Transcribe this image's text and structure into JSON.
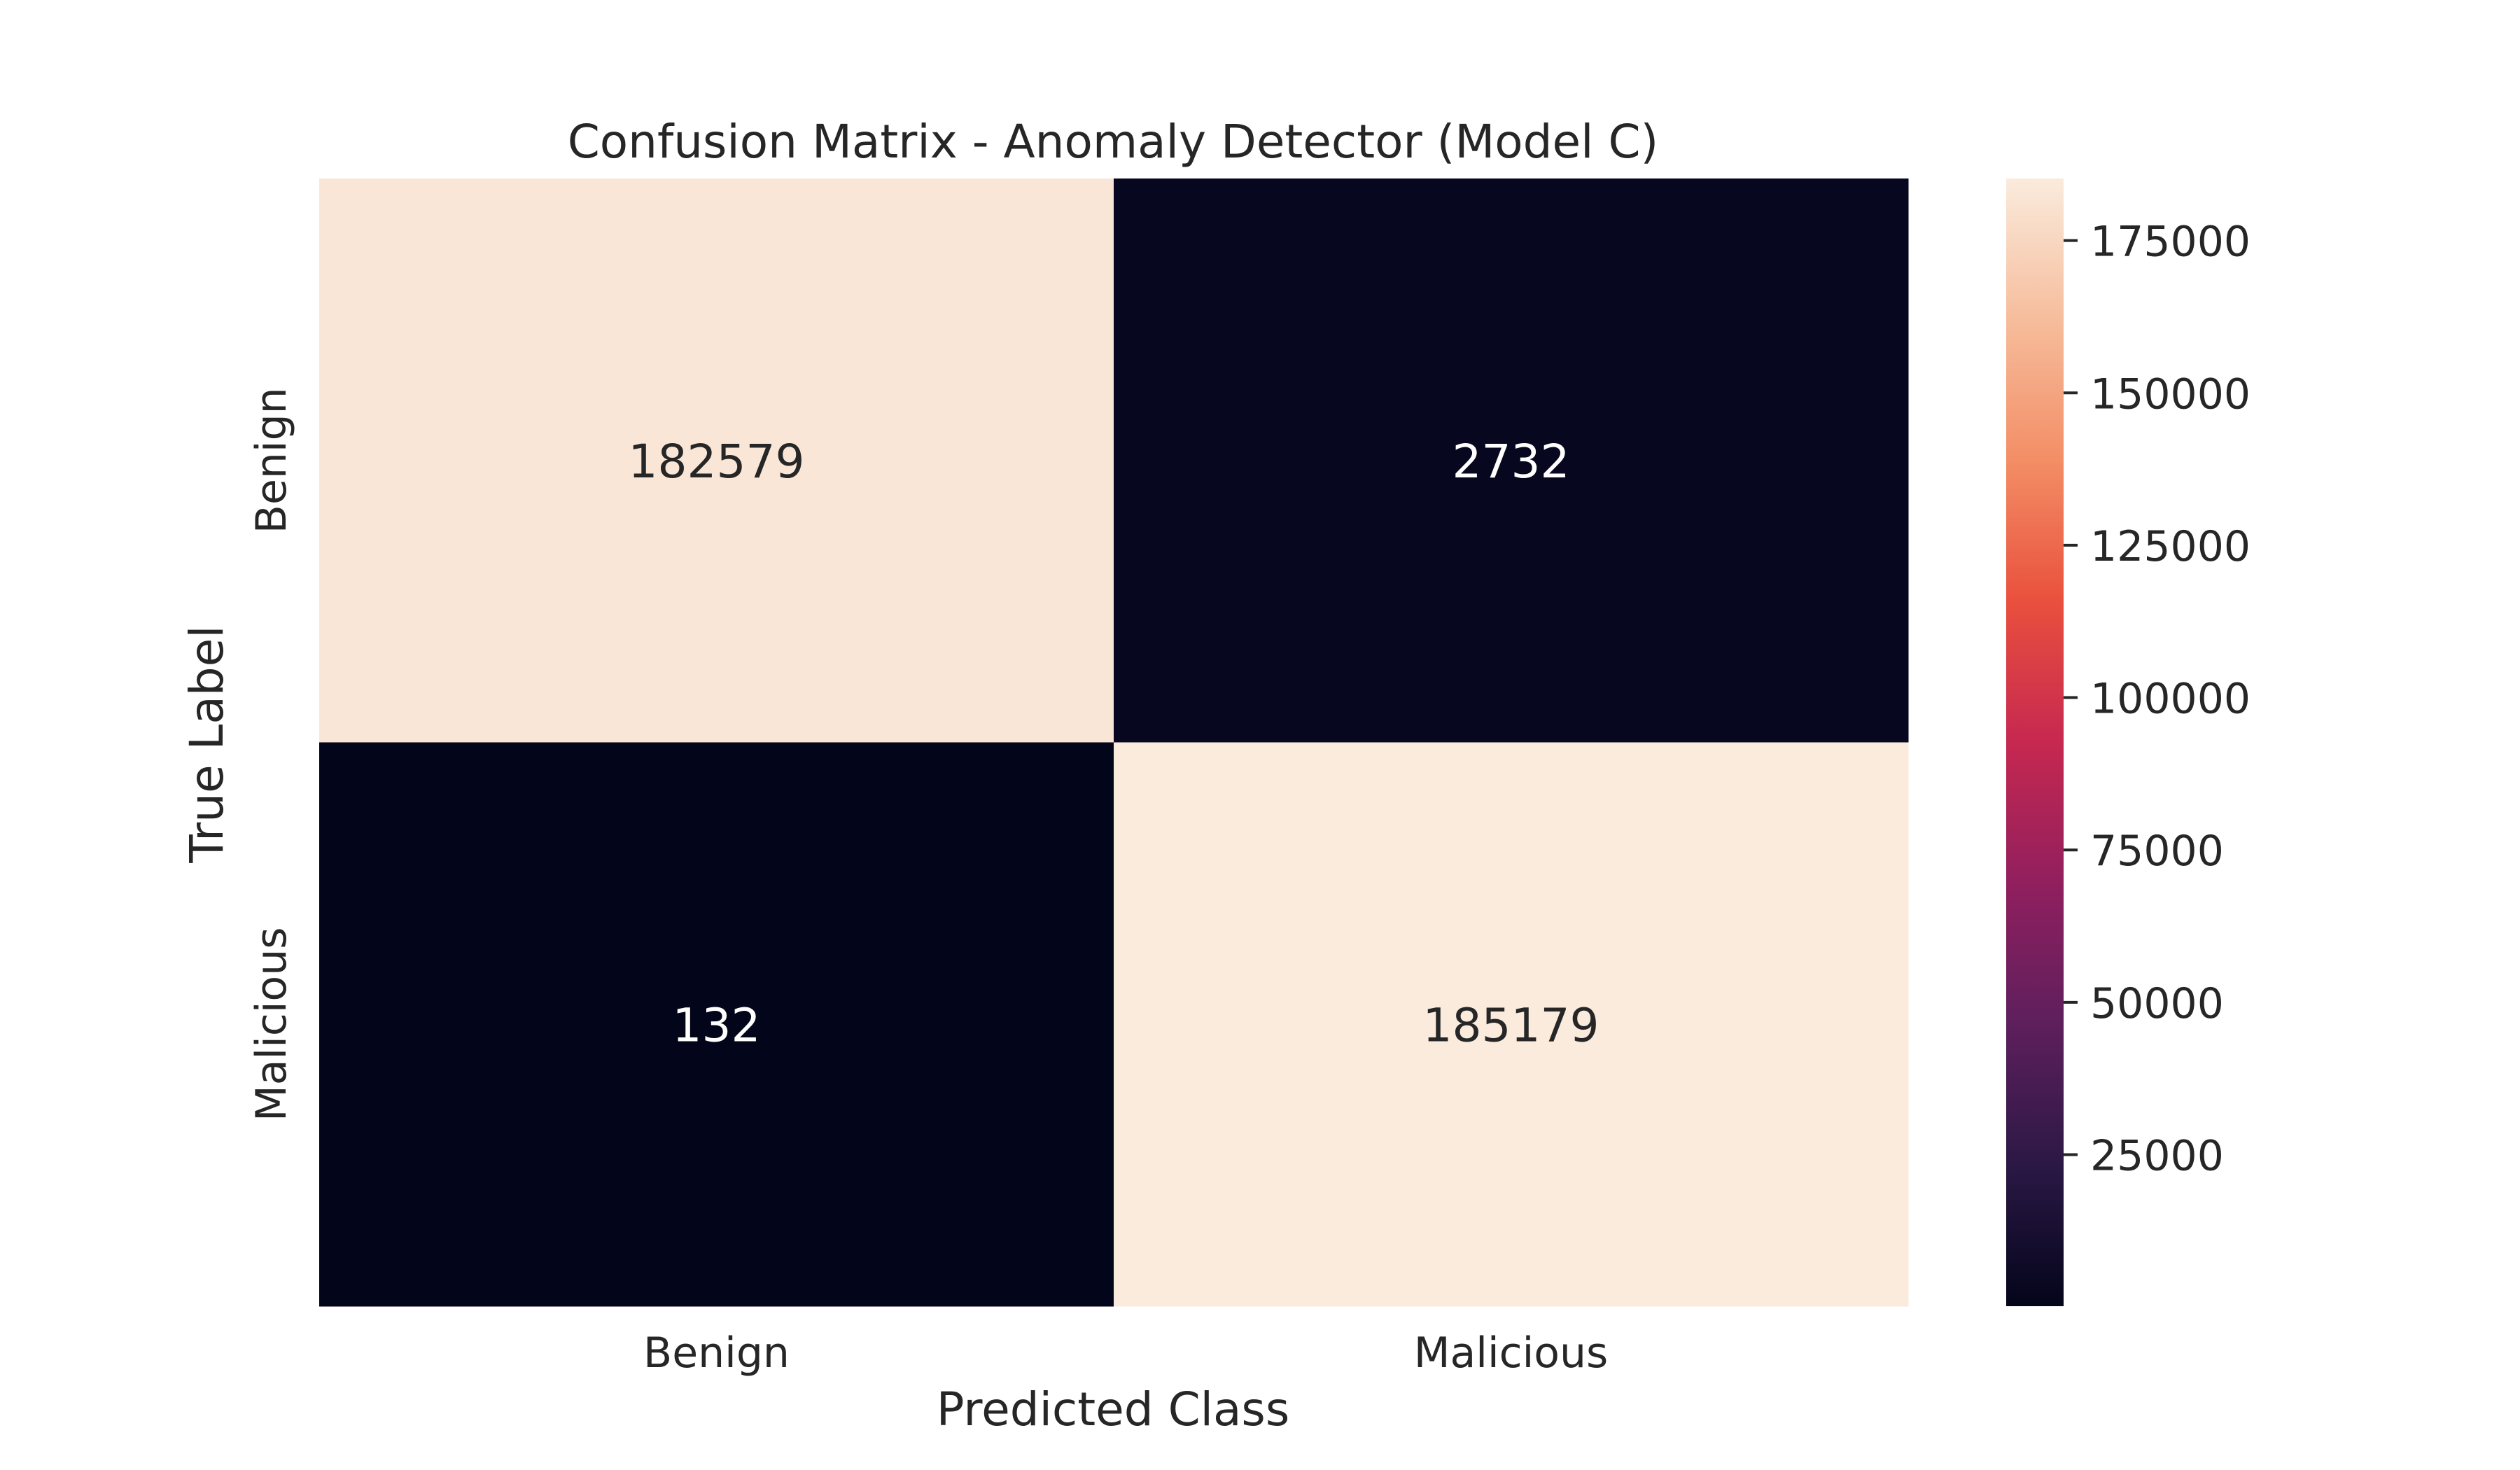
{
  "chart_data": {
    "type": "heatmap",
    "title": "Confusion Matrix - Anomaly Detector (Model C)",
    "xlabel": "Predicted Class",
    "ylabel": "True Label",
    "x_categories": [
      "Benign",
      "Malicious"
    ],
    "y_categories": [
      "Benign",
      "Malicious"
    ],
    "values": [
      [
        182579,
        2732
      ],
      [
        132,
        185179
      ]
    ],
    "colorbar": {
      "min": 132,
      "max": 185179,
      "ticks": [
        25000,
        50000,
        75000,
        100000,
        125000,
        150000,
        175000
      ],
      "colormap": "rocket",
      "stops": [
        "#03051a",
        "#2b1845",
        "#5e1f5d",
        "#911f5e",
        "#c62850",
        "#e9503d",
        "#f38e66",
        "#f6bd9c",
        "#faebdd"
      ]
    },
    "text_color_dark": "#262626",
    "text_color_light": "#ffffff"
  }
}
